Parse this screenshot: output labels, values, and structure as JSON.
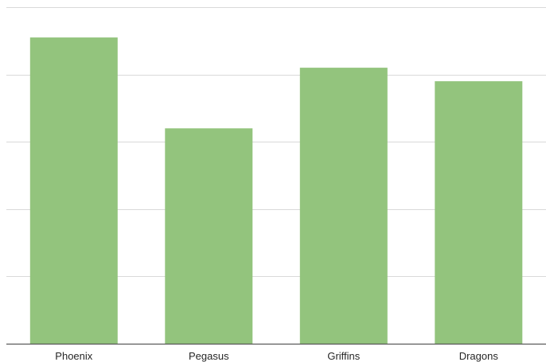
{
  "chart_data": {
    "type": "bar",
    "categories": [
      "Phoenix",
      "Pegasus",
      "Griffins",
      "Dragons"
    ],
    "values": [
      91,
      64,
      82,
      78
    ],
    "ylim": [
      0,
      100
    ],
    "y_gridlines": [
      0,
      20,
      40,
      60,
      80,
      100
    ],
    "y_tick_labels_visible": false,
    "grid": true,
    "legend": "none",
    "colors": {
      "bar": "#93c47d",
      "grid": "#d9d9d9",
      "axis": "#595959",
      "text": "#262626"
    }
  }
}
